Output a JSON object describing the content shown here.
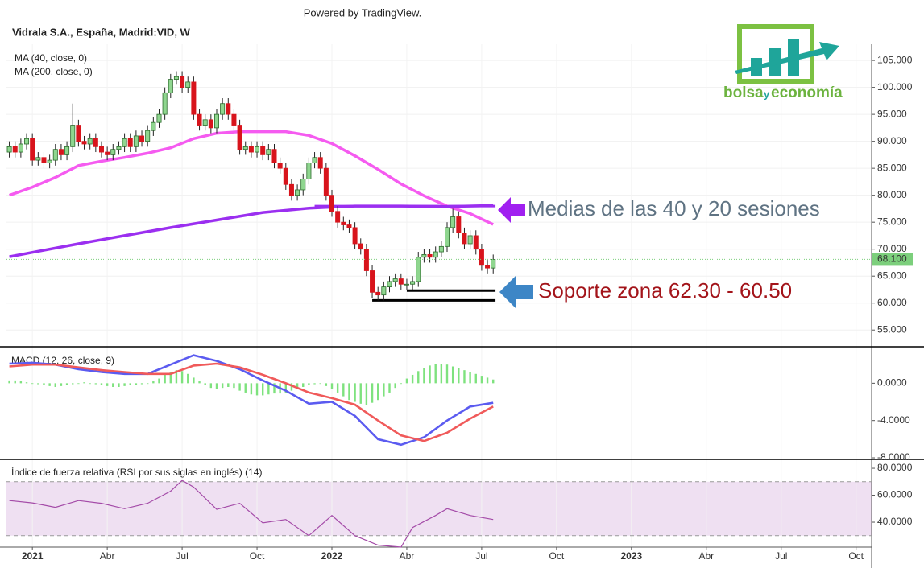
{
  "header": {
    "powered": "Powered by TradingView.",
    "logo": [
      "bolsa",
      "y",
      "economía"
    ]
  },
  "chart_data": [
    {
      "type": "candlestick",
      "title": "Vidrala S.A., España, Madrid:VID, W",
      "x": [
        -4,
        -3,
        -2,
        -1,
        0,
        1,
        2,
        3,
        4,
        5,
        6,
        7,
        8,
        9,
        10,
        11,
        12,
        13,
        14,
        15,
        16,
        17,
        18,
        19,
        20,
        21,
        22,
        23,
        24,
        25,
        26,
        27,
        28,
        29,
        30,
        31,
        32,
        33,
        34,
        35,
        36,
        37,
        38,
        39,
        40,
        41,
        42,
        43,
        44,
        45,
        46,
        47,
        48,
        49,
        50,
        51,
        52,
        53,
        54,
        55,
        56,
        57,
        58,
        59,
        60,
        61,
        62,
        63,
        64,
        65,
        66,
        67,
        68,
        69,
        70,
        71,
        72,
        73,
        74,
        75,
        76,
        77,
        78,
        79,
        80
      ],
      "open": [
        88,
        89,
        88,
        89.5,
        90.5,
        86.5,
        87,
        86,
        86.5,
        88.5,
        87.5,
        89,
        93,
        90,
        89.5,
        90.5,
        89,
        88,
        87.5,
        88.5,
        89,
        90.5,
        89,
        91,
        90,
        92,
        93.5,
        95,
        99,
        101.5,
        102,
        100,
        101,
        95,
        93,
        94,
        92.5,
        95,
        97,
        95,
        93,
        88.5,
        89,
        88,
        89,
        87.5,
        88.5,
        86,
        85,
        82,
        80,
        81,
        83,
        86,
        87,
        85,
        80,
        77,
        75,
        74.5,
        74,
        71,
        70,
        66,
        62,
        61.5,
        63,
        64,
        64.5,
        63.5,
        63.5,
        64,
        68.5,
        69,
        68.5,
        69.5,
        70.5,
        74,
        76,
        73,
        71,
        72.5,
        70,
        67,
        66.5
      ],
      "high": [
        90,
        90,
        90.5,
        91.5,
        91.5,
        88,
        88,
        87.5,
        89.5,
        89.5,
        90,
        97,
        94,
        91,
        91.5,
        91.5,
        90,
        89,
        89.5,
        90,
        91.5,
        91.5,
        92,
        92,
        93,
        94.5,
        96,
        100,
        102.5,
        103,
        103,
        102,
        102,
        96,
        95,
        95,
        96,
        98,
        98,
        96,
        94,
        90,
        90,
        90,
        90,
        89.5,
        89.5,
        87,
        86,
        83,
        82,
        84,
        87,
        88,
        88,
        86,
        81,
        78,
        76,
        75.5,
        75,
        72,
        71,
        67,
        63,
        64,
        65,
        65.5,
        65.5,
        64.5,
        65,
        69.5,
        70,
        70,
        70.5,
        71.5,
        75,
        77.5,
        77,
        74,
        73.5,
        73.5,
        71,
        68,
        69
      ],
      "low": [
        87,
        87,
        87,
        88.5,
        85.5,
        85.5,
        85,
        85,
        85.5,
        86.5,
        86.5,
        88,
        89,
        88.5,
        88.5,
        88,
        87,
        86.5,
        86.5,
        87.5,
        88,
        88,
        88,
        89,
        89,
        91,
        92.5,
        94,
        98,
        100.5,
        99,
        99,
        94,
        92,
        92,
        91.5,
        91.5,
        94,
        94,
        92,
        87.5,
        87.5,
        87,
        87,
        86.5,
        86.5,
        85,
        84,
        81,
        79,
        79,
        80,
        82,
        85,
        84,
        79,
        76,
        74,
        73.5,
        73,
        70,
        69,
        65,
        61,
        60.5,
        60.5,
        62,
        63,
        62.5,
        62.5,
        62.5,
        63,
        67.5,
        67.5,
        67.5,
        68.5,
        69.5,
        73,
        72,
        70,
        70,
        69,
        66,
        65.5,
        65.5
      ],
      "close": [
        89,
        88,
        89.5,
        90.5,
        86.5,
        87,
        86,
        86.5,
        88.5,
        87.5,
        89,
        93,
        90,
        89.5,
        90.5,
        89,
        88,
        87.5,
        88.5,
        89,
        90.5,
        89,
        91,
        90,
        92,
        93.5,
        95,
        99,
        101.5,
        102,
        100,
        101,
        95,
        93,
        94,
        92.5,
        95,
        97,
        95,
        93,
        88.5,
        89,
        88,
        89,
        87.5,
        88.5,
        86,
        85,
        82,
        80,
        81,
        83,
        86,
        87,
        85,
        80,
        77,
        75,
        74.5,
        74,
        71,
        70,
        66,
        62,
        61.5,
        63,
        64,
        64.5,
        63.5,
        63.5,
        64,
        68.5,
        69,
        68.5,
        69.5,
        70.5,
        74,
        76,
        73,
        71,
        72.5,
        70,
        67,
        66.5,
        68.1
      ],
      "up_color": "#8fd68f",
      "down_color": "#d8141c",
      "series": [
        {
          "name": "MA (40, close, 0)",
          "color": "#f55bf0",
          "x": [
            -4,
            0,
            4,
            8,
            12,
            16,
            20,
            24,
            28,
            32,
            36,
            40,
            44,
            48,
            52,
            56,
            60,
            64,
            68,
            72,
            76,
            80
          ],
          "values": [
            80,
            81.5,
            83.3,
            85.5,
            86.3,
            87,
            87.8,
            88.8,
            90.5,
            91.5,
            91.8,
            91.8,
            91.8,
            91.1,
            89.6,
            87.3,
            84.8,
            82.1,
            79.9,
            78,
            76.6,
            74.6
          ]
        },
        {
          "name": "MA (200, close, 0)",
          "color": "#9b2ff0",
          "x": [
            -4,
            0,
            8,
            16,
            24,
            32,
            40,
            48,
            56,
            64,
            72,
            80
          ],
          "values": [
            68.6,
            69.4,
            71,
            72.5,
            74,
            75.4,
            76.8,
            77.6,
            78,
            78,
            77.9,
            78.1
          ]
        }
      ],
      "levels": [
        {
          "value": 78,
          "from": 49,
          "to": 80.4,
          "color": "#9b2ff0"
        },
        {
          "value": 62.3,
          "from": 65,
          "to": 80.4,
          "color": "#000000"
        },
        {
          "value": 60.5,
          "from": 59,
          "to": 80.4,
          "color": "#000000"
        }
      ],
      "annotations": [
        {
          "text": "Medias de las 40 y 20 sesiones",
          "color": "#5f7383"
        },
        {
          "text": "Soporte zona 62.30 - 60.50",
          "color": "#a3141a"
        }
      ],
      "last_price": {
        "value": 68.1,
        "label": "68.100",
        "color": "#7ccf7c"
      },
      "xlim": [
        -4.5,
        145.7
      ],
      "ylim": [
        51.9,
        108
      ],
      "yticks": [
        {
          "value": 55,
          "label": "55.000"
        },
        {
          "value": 60,
          "label": "60.000"
        },
        {
          "value": 65,
          "label": "65.000"
        },
        {
          "value": 70,
          "label": "70.000"
        },
        {
          "value": 75,
          "label": "75.000"
        },
        {
          "value": 80,
          "label": "80.000"
        },
        {
          "value": 85,
          "label": "85.000"
        },
        {
          "value": 90,
          "label": "90.000"
        },
        {
          "value": 95,
          "label": "95.000"
        },
        {
          "value": 100,
          "label": "100.000"
        },
        {
          "value": 105,
          "label": "105.000"
        }
      ],
      "grid": true
    },
    {
      "type": "macd",
      "title": "MACD (12, 26, close, 9)",
      "series": [
        {
          "color": "#5b5bf0",
          "x": [
            -4,
            0,
            4,
            8,
            12,
            16,
            20,
            24,
            28,
            32,
            36,
            40,
            44,
            48,
            52,
            56,
            60,
            64,
            68,
            72,
            76,
            80
          ],
          "values": [
            2.1,
            2.2,
            2,
            1.5,
            1.2,
            1,
            1,
            2,
            3,
            2.4,
            1.5,
            0.3,
            -0.8,
            -2.2,
            -2,
            -3.5,
            -6,
            -6.6,
            -5.8,
            -4,
            -2.5,
            -2.1
          ]
        },
        {
          "color": "#f05a5a",
          "x": [
            -4,
            0,
            4,
            8,
            12,
            16,
            20,
            24,
            28,
            32,
            36,
            40,
            44,
            48,
            52,
            56,
            60,
            64,
            68,
            72,
            76,
            80
          ],
          "values": [
            1.8,
            2,
            2,
            1.7,
            1.4,
            1.2,
            1,
            1,
            1.9,
            2.1,
            1.7,
            0.9,
            0,
            -1,
            -1.6,
            -2.3,
            -4,
            -5.6,
            -6.2,
            -5.3,
            -3.8,
            -2.5
          ]
        }
      ],
      "histogram": {
        "color": "#7ee27e",
        "x": [
          -4,
          -3,
          -2,
          -1,
          0,
          1,
          2,
          3,
          4,
          5,
          6,
          7,
          8,
          9,
          10,
          11,
          12,
          13,
          14,
          15,
          16,
          17,
          18,
          19,
          20,
          21,
          22,
          23,
          24,
          25,
          26,
          27,
          28,
          29,
          30,
          31,
          32,
          33,
          34,
          35,
          36,
          37,
          38,
          39,
          40,
          41,
          42,
          43,
          44,
          45,
          46,
          47,
          48,
          49,
          50,
          51,
          52,
          53,
          54,
          55,
          56,
          57,
          58,
          59,
          60,
          61,
          62,
          63,
          64,
          65,
          66,
          67,
          68,
          69,
          70,
          71,
          72,
          73,
          74,
          75,
          76,
          77,
          78,
          79,
          80
        ],
        "values": [
          0.3,
          0.3,
          0.2,
          0.1,
          0,
          -0.1,
          -0.2,
          -0.3,
          -0.4,
          -0.3,
          -0.2,
          -0.1,
          0,
          0.1,
          0,
          -0.1,
          -0.2,
          -0.3,
          -0.4,
          -0.4,
          -0.3,
          -0.2,
          -0.2,
          -0.1,
          0,
          0.2,
          0.5,
          0.9,
          1.2,
          1.4,
          1.3,
          1,
          0.6,
          0.2,
          -0.2,
          -0.5,
          -0.6,
          -0.5,
          -0.4,
          -0.5,
          -0.8,
          -1,
          -1.2,
          -1.3,
          -1.3,
          -1.2,
          -1.1,
          -1.1,
          -1,
          -0.8,
          -0.6,
          -0.4,
          -0.2,
          -0.1,
          0,
          -0.3,
          -0.6,
          -1,
          -1.4,
          -1.8,
          -2,
          -2.2,
          -2.3,
          -2.1,
          -1.8,
          -1.4,
          -1,
          -0.5,
          0,
          0.5,
          0.9,
          1.3,
          1.6,
          1.9,
          2.1,
          2.1,
          2,
          1.8,
          1.6,
          1.4,
          1.2,
          1,
          0.8,
          0.6,
          0.4
        ]
      },
      "xlim": [
        -4.5,
        145.7
      ],
      "ylim": [
        -8.17,
        3.83
      ],
      "yticks": [
        {
          "value": 0,
          "label": "0.0000"
        },
        {
          "value": -4,
          "label": "-4.0000"
        },
        {
          "value": -8,
          "label": "-8.0000"
        }
      ]
    },
    {
      "type": "rsi",
      "title": "Índice de fuerza relativa (RSI por sus siglas en inglés) (14)",
      "series": [
        {
          "color": "#a44ba8",
          "x": [
            -4,
            0,
            4,
            8,
            12,
            16,
            20,
            24,
            26,
            28,
            32,
            36,
            40,
            44,
            48,
            52,
            56,
            60,
            64,
            66,
            70,
            72,
            76,
            80
          ],
          "values": [
            56,
            54.3,
            51,
            56,
            54,
            50,
            54,
            63,
            71,
            66,
            49.5,
            54,
            39.5,
            42,
            30,
            45,
            30,
            23,
            21.5,
            36,
            45,
            50,
            45,
            42
          ]
        }
      ],
      "band": {
        "upper": 70,
        "lower": 30,
        "color": "#efe0f2"
      },
      "xlim": [
        -4.5,
        145.7
      ],
      "ylim": [
        21.5,
        86
      ],
      "yticks": [
        {
          "value": 40,
          "label": "40.0000"
        },
        {
          "value": 60,
          "label": "60.0000"
        },
        {
          "value": 80,
          "label": "80.0000"
        }
      ],
      "xticks": [
        {
          "value": 0,
          "label": "2021"
        },
        {
          "value": 13,
          "label": "Abr"
        },
        {
          "value": 26,
          "label": "Jul"
        },
        {
          "value": 39,
          "label": "Oct"
        },
        {
          "value": 52,
          "label": "2022"
        },
        {
          "value": 65,
          "label": "Abr"
        },
        {
          "value": 78,
          "label": "Jul"
        },
        {
          "value": 91,
          "label": "Oct"
        },
        {
          "value": 104,
          "label": "2023"
        },
        {
          "value": 117,
          "label": "Abr"
        },
        {
          "value": 130,
          "label": "Jul"
        },
        {
          "value": 143,
          "label": "Oct"
        }
      ]
    }
  ]
}
